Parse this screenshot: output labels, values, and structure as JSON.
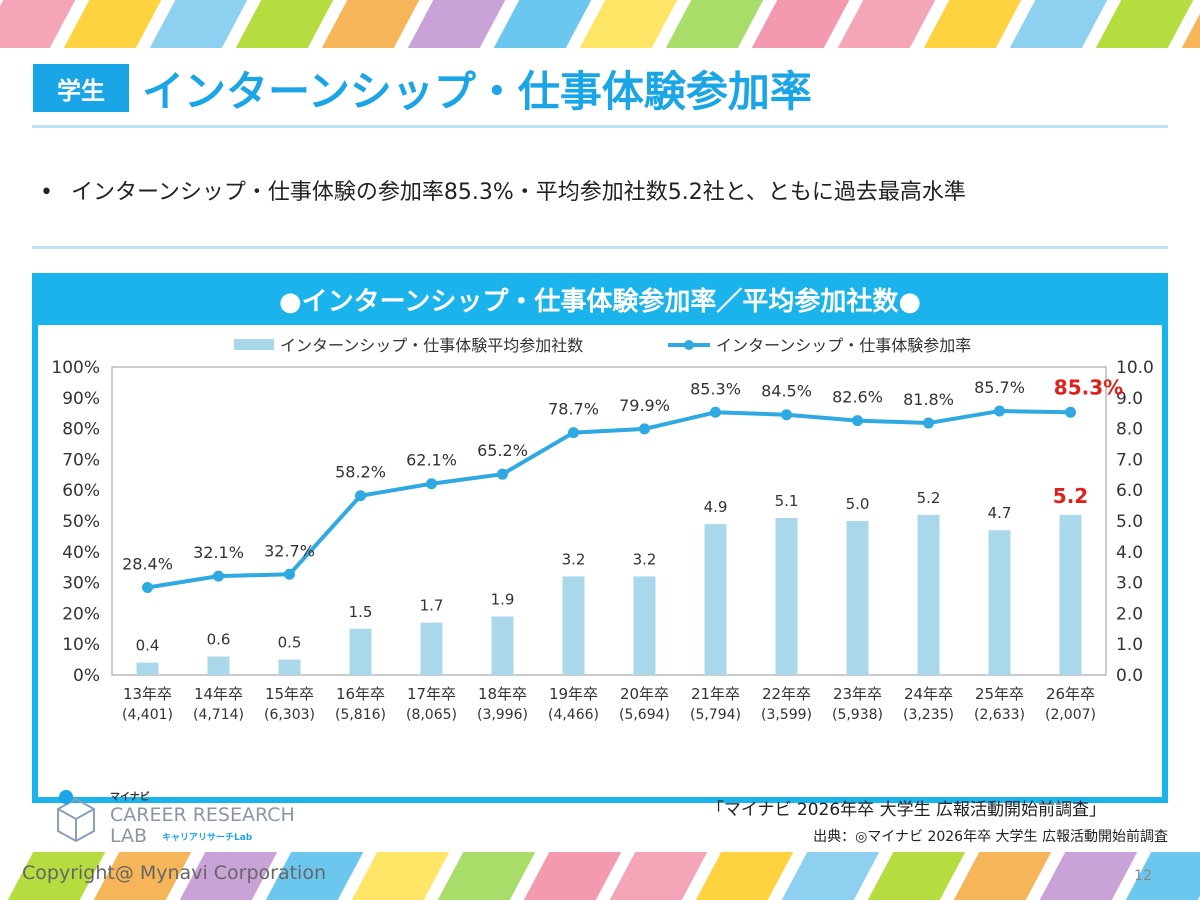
{
  "header": {
    "badge": "学生",
    "title": "インターンシップ・仕事体験参加率"
  },
  "summary": {
    "bullet_mark": "•",
    "text": "インターンシップ・仕事体験の参加率85.3%・平均参加社数5.2社と、ともに過去最高水準"
  },
  "panel": {
    "title": "●インターンシップ・仕事体験参加率／平均参加社数●",
    "source_note": "「マイナビ 2026年卒 大学生 広報活動開始前調査」"
  },
  "logo": {
    "brand": "マイナビ",
    "line1": "CAREER RESEARCH",
    "line2": "LAB",
    "sub": "キャリアリサーチLab",
    "icon": "cube-logo-icon"
  },
  "chart_data": {
    "type": "bar",
    "categories": [
      "13年卒",
      "14年卒",
      "15年卒",
      "16年卒",
      "17年卒",
      "18年卒",
      "19年卒",
      "20年卒",
      "21年卒",
      "22年卒",
      "23年卒",
      "24年卒",
      "25年卒",
      "26年卒"
    ],
    "sample_sizes": [
      "(4,401)",
      "(4,714)",
      "(6,303)",
      "(5,816)",
      "(8,065)",
      "(3,996)",
      "(4,466)",
      "(5,694)",
      "(5,794)",
      "(3,599)",
      "(5,938)",
      "(3,235)",
      "(2,633)",
      "(2,007)"
    ],
    "series": [
      {
        "name": "インターンシップ・仕事体験平均参加社数",
        "type": "bar",
        "axis": "right",
        "values": [
          0.4,
          0.6,
          0.5,
          1.5,
          1.7,
          1.9,
          3.2,
          3.2,
          4.9,
          5.1,
          5.0,
          5.2,
          4.7,
          5.2
        ],
        "labels": [
          "0.4",
          "0.6",
          "0.5",
          "1.5",
          "1.7",
          "1.9",
          "3.2",
          "3.2",
          "4.9",
          "5.1",
          "5.0",
          "5.2",
          "4.7",
          "5.2"
        ],
        "color": "#a8d8ea"
      },
      {
        "name": "インターンシップ・仕事体験参加率",
        "type": "line",
        "axis": "left",
        "values": [
          28.4,
          32.1,
          32.7,
          58.2,
          62.1,
          65.2,
          78.7,
          79.9,
          85.3,
          84.5,
          82.6,
          81.8,
          85.7,
          85.3
        ],
        "labels": [
          "28.4%",
          "32.1%",
          "32.7%",
          "58.2%",
          "62.1%",
          "65.2%",
          "78.7%",
          "79.9%",
          "85.3%",
          "84.5%",
          "82.6%",
          "81.8%",
          "85.7%",
          "85.3%"
        ],
        "color": "#2fa9e1"
      }
    ],
    "y_left": {
      "min": 0,
      "max": 100,
      "ticks": [
        "0%",
        "10%",
        "20%",
        "30%",
        "40%",
        "50%",
        "60%",
        "70%",
        "80%",
        "90%",
        "100%"
      ]
    },
    "y_right": {
      "min": 0,
      "max": 10,
      "ticks": [
        "0.0",
        "1.0",
        "2.0",
        "3.0",
        "4.0",
        "5.0",
        "6.0",
        "7.0",
        "8.0",
        "9.0",
        "10.0"
      ]
    },
    "highlight_index": 13,
    "highlight_color": "#e0201b",
    "grid": false,
    "legend": "top"
  },
  "footer": {
    "source": "出典：◎マイナビ 2026年卒 大学生 広報活動開始前調査",
    "copyright": "Copyright@ Mynavi Corporation",
    "page_number": "12"
  },
  "theme": {
    "accent": "#1aa5e6",
    "panel": "#1ab3ec",
    "stripe_colors": [
      "#f4a6b8",
      "#ffd23f",
      "#8dd0f0",
      "#b5dd3f",
      "#f7b55a",
      "#c9a3d8",
      "#6cc7ef",
      "#ffe566",
      "#a8dd6a",
      "#f39ab0"
    ]
  }
}
